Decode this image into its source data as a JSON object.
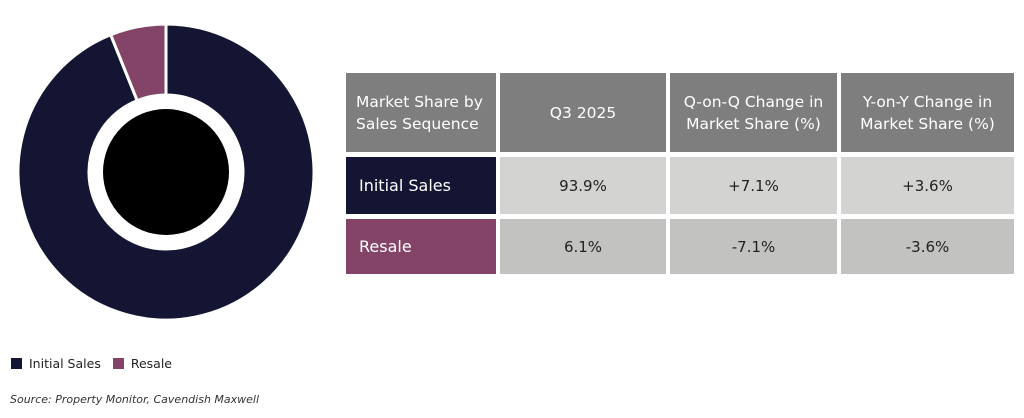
{
  "chart_data": {
    "type": "pie",
    "donut": true,
    "categories": [
      "Initial Sales",
      "Resale"
    ],
    "values": [
      93.9,
      6.1
    ],
    "colors": [
      "#141532",
      "#834467"
    ],
    "center_color": "#000000",
    "legend_position": "bottom-left"
  },
  "table": {
    "headers": [
      "Market Share by Sales Sequence",
      "Q3 2025",
      "Q-on-Q Change in Market Share (%)",
      "Y-on-Y Change in Market Share (%)"
    ],
    "rows": [
      {
        "label": "Initial Sales",
        "q3": "93.9%",
        "qoq": "+7.1%",
        "yoy": "+3.6%",
        "color": "#141532"
      },
      {
        "label": "Resale",
        "q3": "6.1%",
        "qoq": "-7.1%",
        "yoy": "-3.6%",
        "color": "#834467"
      }
    ]
  },
  "legend": {
    "items": [
      "Initial Sales",
      "Resale"
    ]
  },
  "source": "Source: Property Monitor, Cavendish Maxwell"
}
